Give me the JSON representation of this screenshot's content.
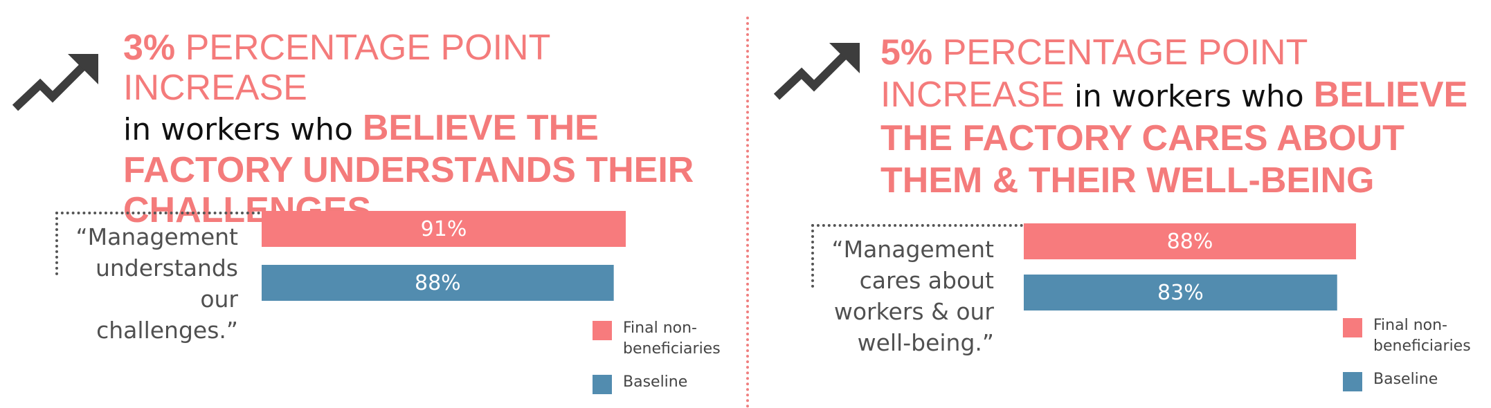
{
  "colors": {
    "final": "#f77b7d",
    "baseline": "#528caf",
    "accent": "#f47b7b",
    "icon": "#3d3d3d"
  },
  "icons": {
    "trend": "trend-up-arrow-icon"
  },
  "panels": [
    {
      "headline": {
        "pct": "3%",
        "lead": " PERCENTAGE POINT INCREASE",
        "mid": "in workers who ",
        "strong": "BELIEVE THE FACTORY UNDERSTANDS THEIR CHALLENGES"
      },
      "quote": "“Management understands our challenges.”",
      "legend": {
        "final_label": "Final non-beneficiaries",
        "baseline_label": "Baseline"
      }
    },
    {
      "headline": {
        "pct": "5%",
        "lead": " PERCENTAGE POINT INCREASE",
        "mid": " in workers who ",
        "strong": "BELIEVE THE FACTORY CARES ABOUT THEM & THEIR WELL-BEING"
      },
      "quote": "“Management cares about workers & our well-being.”",
      "legend": {
        "final_label": "Final non-beneficiaries",
        "baseline_label": "Baseline"
      }
    }
  ],
  "chart_data": [
    {
      "type": "bar",
      "orientation": "horizontal",
      "categories": [
        "“Management understands our challenges.”"
      ],
      "series": [
        {
          "name": "Final non-beneficiaries",
          "values": [
            91
          ],
          "labels": [
            "91%"
          ]
        },
        {
          "name": "Baseline",
          "values": [
            88
          ],
          "labels": [
            "88%"
          ]
        }
      ],
      "xlim": [
        0,
        100
      ],
      "legend_position": "bottom-right",
      "grid": false
    },
    {
      "type": "bar",
      "orientation": "horizontal",
      "categories": [
        "“Management cares about workers & our well-being.”"
      ],
      "series": [
        {
          "name": "Final non-beneficiaries",
          "values": [
            88
          ],
          "labels": [
            "88%"
          ]
        },
        {
          "name": "Baseline",
          "values": [
            83
          ],
          "labels": [
            "83%"
          ]
        }
      ],
      "xlim": [
        0,
        100
      ],
      "legend_position": "bottom-right",
      "grid": false
    }
  ]
}
